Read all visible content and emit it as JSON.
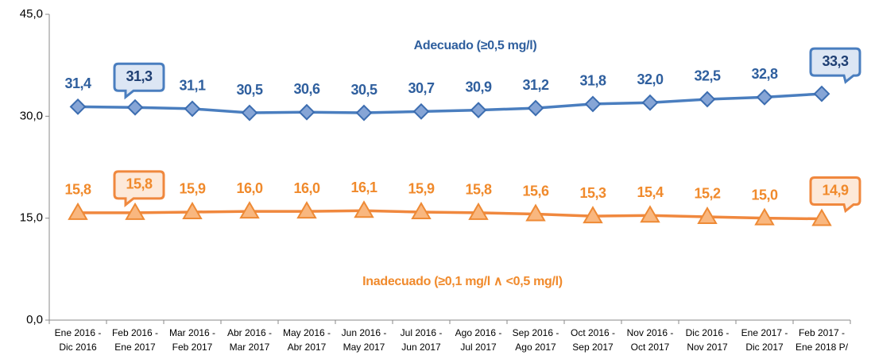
{
  "chart_data": {
    "type": "line",
    "categories": [
      [
        "Ene 2016 -",
        "Dic 2016"
      ],
      [
        "Feb 2016 -",
        "Ene 2017"
      ],
      [
        "Mar 2016 -",
        "Feb 2017"
      ],
      [
        "Abr 2016 -",
        "Mar 2017"
      ],
      [
        "May 2016 -",
        "Abr 2017"
      ],
      [
        "Jun 2016 -",
        "May 2017"
      ],
      [
        "Jul 2016 -",
        "Jun 2017"
      ],
      [
        "Ago 2016 -",
        "Jul 2017"
      ],
      [
        "Sep 2016 -",
        "Ago 2017"
      ],
      [
        "Oct 2016 -",
        "Sep 2017"
      ],
      [
        "Nov 2016 -",
        "Oct 2017"
      ],
      [
        "Dic 2016 -",
        "Nov 2017"
      ],
      [
        "Ene 2017 -",
        "Dic 2017"
      ],
      [
        "Feb 2017 -",
        "Ene 2018 P/"
      ]
    ],
    "ylim": [
      0,
      45
    ],
    "yticks": [
      {
        "value": 0,
        "label": "0,0"
      },
      {
        "value": 15,
        "label": "15,0"
      },
      {
        "value": 30,
        "label": "30,0"
      },
      {
        "value": 45,
        "label": "45,0"
      }
    ],
    "series": [
      {
        "name": "Adecuado (≥0,5 mg/l)",
        "color": "#4a7ebf",
        "marker": "diamond",
        "highlight": [
          1,
          13
        ],
        "values": [
          31.4,
          31.3,
          31.1,
          30.5,
          30.6,
          30.5,
          30.7,
          30.9,
          31.2,
          31.8,
          32.0,
          32.5,
          32.8,
          33.3
        ],
        "value_labels": [
          "31,4",
          "31,3",
          "31,1",
          "30,5",
          "30,6",
          "30,5",
          "30,7",
          "30,9",
          "31,2",
          "31,8",
          "32,0",
          "32,5",
          "32,8",
          "33,3"
        ]
      },
      {
        "name": "Inadecuado (≥0,1 mg/l ∧ <0,5 mg/l)",
        "color": "#f0883e",
        "marker": "triangle",
        "highlight": [
          1,
          13
        ],
        "values": [
          15.8,
          15.8,
          15.9,
          16.0,
          16.0,
          16.1,
          15.9,
          15.8,
          15.6,
          15.3,
          15.4,
          15.2,
          15.0,
          14.9
        ],
        "value_labels": [
          "15,8",
          "15,8",
          "15,9",
          "16,0",
          "16,0",
          "16,1",
          "15,9",
          "15,8",
          "15,6",
          "15,3",
          "15,4",
          "15,2",
          "15,0",
          "14,9"
        ]
      }
    ]
  }
}
